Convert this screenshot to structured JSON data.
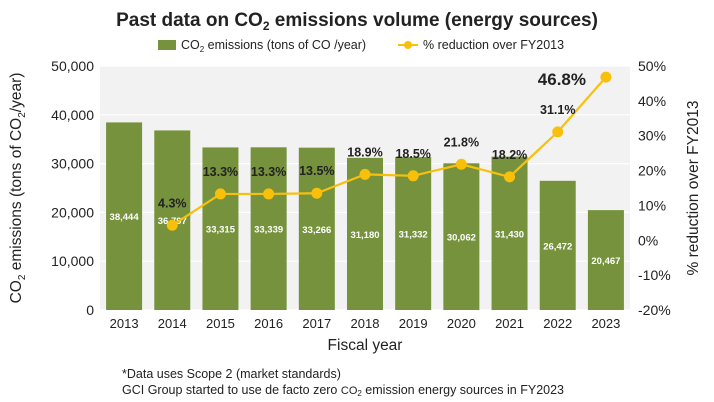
{
  "chart_data": {
    "type": "bar",
    "title_pre": "Past data on ",
    "title_co": "CO",
    "title_sub": "2",
    "title_post": " emissions volume (energy sources)",
    "xlabel": "Fiscal year",
    "ylabel_left_pre": "CO",
    "ylabel_left_sub": "2",
    "ylabel_left_mid": " emissions (tons of CO",
    "ylabel_left_sub2": "2",
    "ylabel_left_post": "/year)",
    "ylabel_right": "% reduction over FY2013",
    "categories": [
      "2013",
      "2014",
      "2015",
      "2016",
      "2017",
      "2018",
      "2019",
      "2020",
      "2021",
      "2022",
      "2023"
    ],
    "bar_series": {
      "name_pre": "CO",
      "name_sub": "2",
      "name_post": " emissions (tons of CO /year)",
      "values": [
        38444,
        36797,
        33315,
        33339,
        33266,
        31180,
        31332,
        30062,
        31430,
        26472,
        20467
      ],
      "labels": [
        "38,444",
        "36,797",
        "33,315",
        "33,339",
        "33,266",
        "31,180",
        "31,332",
        "30,062",
        "31,430",
        "26,472",
        "20,467"
      ],
      "color": "#76923c"
    },
    "line_series": {
      "name": "% reduction over FY2013",
      "categories": [
        "2014",
        "2015",
        "2016",
        "2017",
        "2018",
        "2019",
        "2020",
        "2021",
        "2022",
        "2023"
      ],
      "values": [
        4.3,
        13.3,
        13.3,
        13.5,
        18.9,
        18.5,
        21.8,
        18.2,
        31.1,
        46.8
      ],
      "labels": [
        "4.3%",
        "13.3%",
        "13.3%",
        "13.5%",
        "18.9%",
        "18.5%",
        "21.8%",
        "18.2%",
        "31.1%",
        "46.8%"
      ],
      "color": "#f9c00b"
    },
    "y_left": {
      "min": 0,
      "max": 50000,
      "ticks": [
        0,
        10000,
        20000,
        30000,
        40000,
        50000
      ],
      "tick_labels": [
        "0",
        "10,000",
        "20,000",
        "30,000",
        "40,000",
        "50,000"
      ]
    },
    "y_right": {
      "min": -20,
      "max": 50,
      "ticks": [
        -20,
        -10,
        0,
        10,
        20,
        30,
        40,
        50
      ],
      "tick_labels": [
        "-20%",
        "-10%",
        "0%",
        "10%",
        "20%",
        "30%",
        "40%",
        "50%"
      ]
    },
    "grid": true,
    "legend_position": "top-center"
  },
  "notes": {
    "line1": "*Data uses Scope 2 (market standards)",
    "line2_pre": "GCI Group started to use de facto zero ",
    "line2_co": "CO",
    "line2_sub": "2",
    "line2_post": " emission energy sources in FY2023"
  }
}
